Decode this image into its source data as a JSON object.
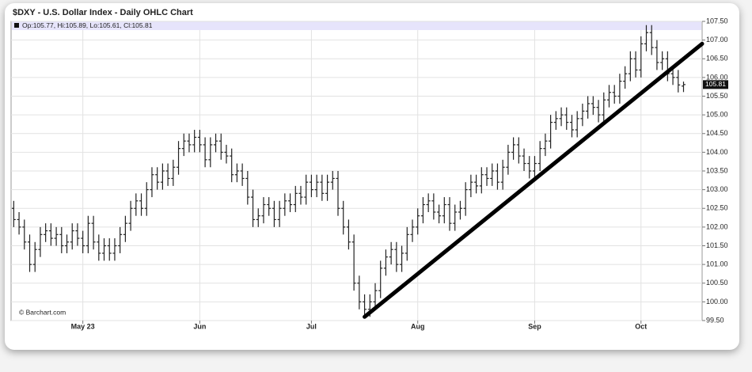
{
  "chart_data": {
    "type": "ohlc",
    "title": "$DXY - U.S. Dollar Index - Daily OHLC Chart",
    "info": "Op:105.77, Hi:105.89, Lo:105.61, Cl:105.81",
    "watermark": "© Barchart.com",
    "color": "#222222",
    "grid": true,
    "xlim": [
      -0.5,
      129.5
    ],
    "xticks": [
      {
        "value": 13,
        "label": "May 23"
      },
      {
        "value": 35,
        "label": "Jun"
      },
      {
        "value": 56,
        "label": "Jul"
      },
      {
        "value": 76,
        "label": "Aug"
      },
      {
        "value": 98,
        "label": "Sep"
      },
      {
        "value": 118,
        "label": "Oct"
      }
    ],
    "ylim": [
      99.5,
      107.5
    ],
    "yticks": [
      {
        "value": 99.5,
        "label": "99.50"
      },
      {
        "value": 100,
        "label": "100.00"
      },
      {
        "value": 100.5,
        "label": "100.50"
      },
      {
        "value": 101,
        "label": "101.00"
      },
      {
        "value": 101.5,
        "label": "101.50"
      },
      {
        "value": 102,
        "label": "102.00"
      },
      {
        "value": 102.5,
        "label": "102.50"
      },
      {
        "value": 103,
        "label": "103.00"
      },
      {
        "value": 103.5,
        "label": "103.50"
      },
      {
        "value": 104,
        "label": "104.00"
      },
      {
        "value": 104.5,
        "label": "104.50"
      },
      {
        "value": 105,
        "label": "105.00"
      },
      {
        "value": 105.5,
        "label": "105.50"
      },
      {
        "value": 106,
        "label": "106.00"
      },
      {
        "value": 106.5,
        "label": "106.50"
      },
      {
        "value": 107,
        "label": "107.00"
      },
      {
        "value": 107.5,
        "label": "107.50"
      }
    ],
    "open": [
      102.5,
      102.2,
      102.0,
      101.6,
      101.0,
      101.4,
      101.8,
      101.9,
      101.7,
      101.8,
      101.5,
      101.6,
      101.9,
      101.7,
      101.5,
      102.1,
      101.6,
      101.3,
      101.5,
      101.3,
      101.5,
      101.8,
      102.1,
      102.5,
      102.7,
      102.5,
      103.0,
      103.4,
      103.2,
      103.5,
      103.3,
      103.6,
      104.1,
      104.3,
      104.2,
      104.4,
      104.2,
      103.8,
      104.2,
      104.3,
      104.0,
      103.9,
      103.4,
      103.5,
      103.3,
      102.8,
      102.2,
      102.3,
      102.6,
      102.5,
      102.2,
      102.5,
      102.7,
      102.6,
      102.9,
      102.8,
      103.2,
      103.0,
      103.2,
      102.9,
      103.2,
      103.3,
      102.5,
      102.0,
      101.6,
      100.5,
      100.0,
      99.8,
      100.0,
      100.3,
      100.9,
      101.2,
      101.4,
      101.0,
      101.3,
      101.8,
      102.0,
      102.3,
      102.6,
      102.7,
      102.4,
      102.3,
      102.6,
      102.1,
      102.4,
      102.5,
      103.0,
      103.2,
      103.1,
      103.4,
      103.3,
      103.5,
      103.2,
      103.6,
      104.0,
      104.2,
      103.9,
      103.7,
      103.5,
      103.7,
      104.1,
      104.3,
      104.8,
      104.9,
      105.0,
      104.8,
      104.6,
      104.9,
      105.1,
      105.3,
      105.2,
      105.0,
      105.4,
      105.6,
      105.5,
      105.9,
      106.1,
      106.5,
      106.2,
      106.9,
      107.2,
      106.8,
      106.4,
      106.5,
      106.1,
      106.0,
      105.77
    ],
    "high": [
      102.7,
      102.4,
      102.2,
      101.8,
      101.6,
      102.0,
      102.1,
      102.1,
      102.0,
      102.0,
      101.8,
      102.1,
      102.1,
      101.9,
      102.3,
      102.3,
      101.8,
      101.7,
      101.7,
      101.7,
      102.0,
      102.3,
      102.7,
      102.9,
      102.9,
      103.2,
      103.6,
      103.6,
      103.7,
      103.7,
      103.8,
      104.3,
      104.5,
      104.5,
      104.6,
      104.6,
      104.4,
      104.4,
      104.5,
      104.5,
      104.2,
      104.1,
      103.7,
      103.7,
      103.5,
      103.0,
      102.5,
      102.8,
      102.8,
      102.7,
      102.7,
      102.9,
      102.9,
      103.1,
      103.1,
      103.4,
      103.4,
      103.4,
      103.4,
      103.4,
      103.5,
      103.5,
      102.7,
      102.2,
      101.8,
      100.7,
      100.2,
      100.2,
      100.5,
      101.1,
      101.4,
      101.6,
      101.6,
      101.5,
      102.0,
      102.2,
      102.5,
      102.8,
      102.9,
      102.9,
      102.6,
      102.8,
      102.8,
      102.6,
      102.7,
      103.2,
      103.4,
      103.4,
      103.6,
      103.6,
      103.7,
      103.7,
      103.8,
      104.2,
      104.4,
      104.4,
      104.1,
      103.9,
      103.9,
      104.3,
      104.5,
      105.0,
      105.1,
      105.2,
      105.2,
      105.0,
      105.1,
      105.3,
      105.5,
      105.5,
      105.4,
      105.6,
      105.8,
      105.8,
      106.1,
      106.3,
      106.7,
      106.7,
      107.1,
      107.4,
      107.4,
      107.0,
      106.7,
      106.7,
      106.3,
      106.2,
      105.89
    ],
    "low": [
      102.0,
      101.8,
      101.4,
      100.8,
      100.8,
      101.2,
      101.6,
      101.5,
      101.5,
      101.3,
      101.3,
      101.4,
      101.5,
      101.3,
      101.3,
      101.4,
      101.1,
      101.1,
      101.1,
      101.1,
      101.3,
      101.6,
      101.9,
      102.3,
      102.3,
      102.3,
      102.8,
      103.0,
      103.0,
      103.1,
      103.1,
      103.4,
      103.9,
      104.0,
      104.0,
      104.0,
      103.6,
      103.6,
      104.0,
      103.8,
      103.7,
      103.2,
      103.2,
      103.1,
      102.6,
      102.0,
      102.0,
      102.1,
      102.3,
      102.0,
      102.0,
      102.3,
      102.4,
      102.4,
      102.6,
      102.6,
      102.8,
      102.8,
      102.7,
      102.7,
      103.0,
      102.3,
      101.8,
      101.4,
      100.3,
      99.8,
      99.6,
      99.6,
      99.8,
      100.1,
      100.7,
      101.0,
      100.8,
      100.8,
      101.1,
      101.6,
      101.8,
      102.1,
      102.4,
      102.2,
      102.1,
      102.1,
      101.9,
      101.9,
      102.2,
      102.3,
      102.8,
      102.9,
      102.9,
      103.1,
      103.1,
      103.0,
      103.0,
      103.4,
      103.8,
      103.7,
      103.5,
      103.3,
      103.3,
      103.5,
      103.9,
      104.1,
      104.6,
      104.7,
      104.6,
      104.4,
      104.4,
      104.7,
      104.9,
      105.0,
      104.8,
      104.8,
      105.2,
      105.3,
      105.3,
      105.7,
      105.9,
      106.0,
      106.0,
      106.7,
      106.6,
      106.2,
      106.2,
      105.9,
      105.8,
      105.6,
      105.61
    ],
    "close": [
      102.2,
      102.0,
      101.6,
      101.0,
      101.4,
      101.8,
      101.9,
      101.7,
      101.8,
      101.5,
      101.6,
      101.9,
      101.7,
      101.5,
      102.1,
      101.6,
      101.3,
      101.5,
      101.3,
      101.5,
      101.8,
      102.1,
      102.5,
      102.7,
      102.5,
      103.0,
      103.4,
      103.2,
      103.5,
      103.3,
      103.6,
      104.1,
      104.3,
      104.2,
      104.4,
      104.2,
      103.8,
      104.2,
      104.3,
      104.0,
      103.9,
      103.4,
      103.5,
      103.3,
      102.8,
      102.2,
      102.3,
      102.6,
      102.5,
      102.2,
      102.5,
      102.7,
      102.6,
      102.9,
      102.8,
      103.2,
      103.0,
      103.2,
      102.9,
      103.2,
      103.3,
      102.5,
      102.0,
      101.6,
      100.5,
      100.0,
      99.8,
      100.0,
      100.3,
      100.9,
      101.2,
      101.4,
      101.0,
      101.3,
      101.8,
      102.0,
      102.3,
      102.6,
      102.7,
      102.4,
      102.3,
      102.6,
      102.1,
      102.4,
      102.5,
      103.0,
      103.2,
      103.1,
      103.4,
      103.3,
      103.5,
      103.2,
      103.6,
      104.0,
      104.2,
      103.9,
      103.7,
      103.5,
      103.7,
      104.1,
      104.3,
      104.8,
      104.9,
      105.0,
      104.8,
      104.6,
      104.9,
      105.1,
      105.3,
      105.2,
      105.0,
      105.4,
      105.6,
      105.5,
      105.9,
      106.1,
      106.5,
      106.2,
      106.9,
      107.2,
      106.8,
      106.4,
      106.5,
      106.1,
      106.0,
      105.8,
      105.81
    ],
    "trendline": {
      "x": [
        66,
        129.5
      ],
      "y": [
        99.6,
        106.9
      ]
    }
  }
}
